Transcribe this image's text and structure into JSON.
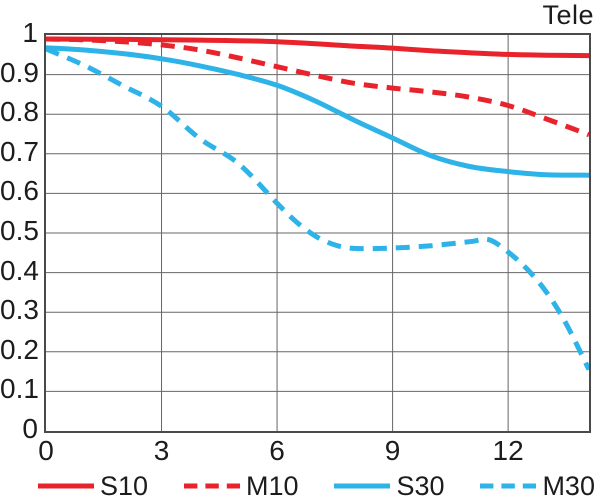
{
  "title": "Tele",
  "colors": {
    "red": "#e8232b",
    "blue": "#2eb3e8",
    "grid": "#666666",
    "axis_border": "#4a4a4a",
    "text": "#1c1c1c",
    "background": "#ffffff"
  },
  "chart_data": {
    "type": "line",
    "title": "Tele",
    "xlabel": "",
    "ylabel": "",
    "xlim": [
      0,
      14.1
    ],
    "ylim": [
      0,
      1
    ],
    "x_ticks": [
      0,
      3,
      6,
      9,
      12
    ],
    "x_tick_labels": [
      "0",
      "3",
      "6",
      "9",
      "12"
    ],
    "y_ticks": [
      1,
      0.9,
      0.8,
      0.7,
      0.6,
      0.5,
      0.4,
      0.3,
      0.2,
      0.1,
      0
    ],
    "y_tick_labels": [
      "1",
      "0.9",
      "0.8",
      "0.7",
      "0.6",
      "0.5",
      "0.4",
      "0.3",
      "0.2",
      "0.1",
      "0"
    ],
    "grid": true,
    "legend_position": "bottom",
    "series": [
      {
        "name": "S10",
        "color": "#e8232b",
        "style": "solid",
        "dash": "none",
        "legend_dash": "none",
        "points": [
          [
            0,
            0.99
          ],
          [
            2,
            0.989
          ],
          [
            4,
            0.987
          ],
          [
            6,
            0.983
          ],
          [
            8,
            0.972
          ],
          [
            9,
            0.967
          ],
          [
            10,
            0.96
          ],
          [
            11,
            0.955
          ],
          [
            12,
            0.951
          ],
          [
            13,
            0.949
          ],
          [
            14.1,
            0.948
          ]
        ]
      },
      {
        "name": "M10",
        "color": "#e8232b",
        "style": "dashed",
        "dash": "14 9",
        "legend_dash": "13.4 8",
        "points": [
          [
            0,
            0.99
          ],
          [
            1,
            0.988
          ],
          [
            2,
            0.983
          ],
          [
            3,
            0.975
          ],
          [
            4,
            0.962
          ],
          [
            5,
            0.942
          ],
          [
            6,
            0.92
          ],
          [
            7,
            0.898
          ],
          [
            8,
            0.878
          ],
          [
            9,
            0.866
          ],
          [
            10,
            0.856
          ],
          [
            11,
            0.843
          ],
          [
            12,
            0.822
          ],
          [
            13,
            0.788
          ],
          [
            14.1,
            0.748
          ]
        ]
      },
      {
        "name": "S30",
        "color": "#2eb3e8",
        "style": "solid",
        "dash": "none",
        "legend_dash": "none",
        "points": [
          [
            0,
            0.968
          ],
          [
            1,
            0.962
          ],
          [
            2,
            0.953
          ],
          [
            3,
            0.94
          ],
          [
            4,
            0.922
          ],
          [
            5,
            0.9
          ],
          [
            6,
            0.873
          ],
          [
            7,
            0.833
          ],
          [
            8,
            0.785
          ],
          [
            9,
            0.74
          ],
          [
            10,
            0.695
          ],
          [
            11,
            0.668
          ],
          [
            12,
            0.655
          ],
          [
            13,
            0.647
          ],
          [
            14.1,
            0.646
          ]
        ]
      },
      {
        "name": "M30",
        "color": "#2eb3e8",
        "style": "dashed",
        "dash": "14 9",
        "legend_dash": "13.4 8",
        "points": [
          [
            0,
            0.965
          ],
          [
            1,
            0.923
          ],
          [
            2,
            0.872
          ],
          [
            3,
            0.82
          ],
          [
            4,
            0.738
          ],
          [
            5,
            0.675
          ],
          [
            6,
            0.575
          ],
          [
            6.5,
            0.528
          ],
          [
            7,
            0.492
          ],
          [
            7.5,
            0.47
          ],
          [
            8,
            0.461
          ],
          [
            9,
            0.462
          ],
          [
            10,
            0.468
          ],
          [
            11,
            0.478
          ],
          [
            11.5,
            0.483
          ],
          [
            12,
            0.452
          ],
          [
            12.5,
            0.408
          ],
          [
            13,
            0.35
          ],
          [
            13.5,
            0.272
          ],
          [
            14.1,
            0.155
          ]
        ]
      }
    ]
  }
}
